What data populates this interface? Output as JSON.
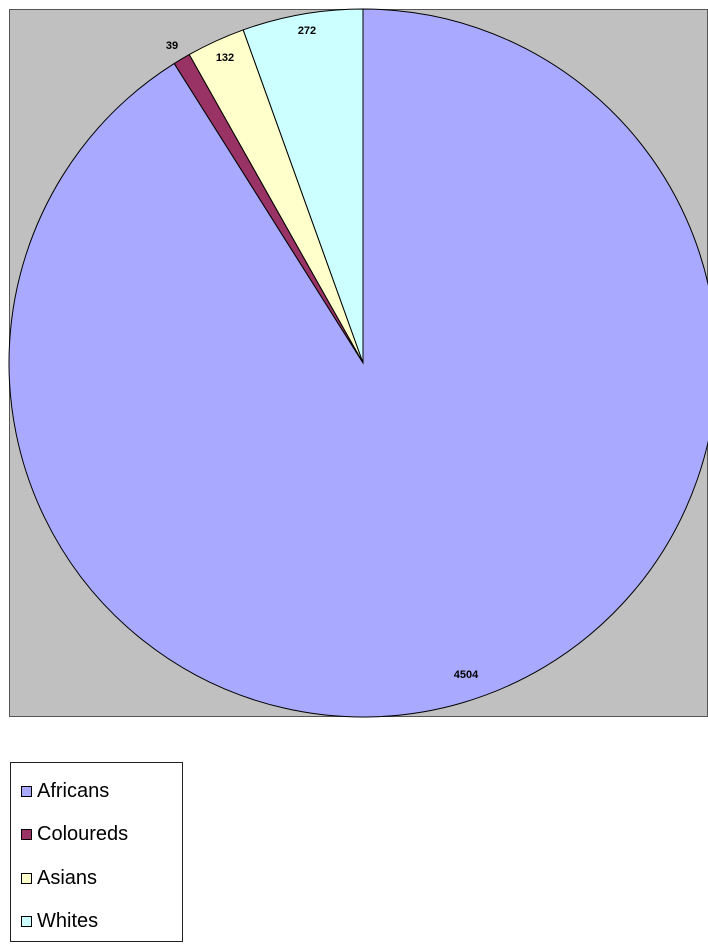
{
  "chart_data": {
    "type": "pie",
    "title": "",
    "categories": [
      "Africans",
      "Coloureds",
      "Asians",
      "Whites"
    ],
    "values": [
      4504,
      39,
      132,
      272
    ],
    "data_labels": [
      "4504",
      "39",
      "132",
      "272"
    ],
    "colors": [
      "#a9aaff",
      "#993366",
      "#ffffcc",
      "#ccffff"
    ],
    "start_angle_deg": 0,
    "direction": "counterclockwise-from-top (Whites, Asians, Coloureds, Africans)",
    "background": "#c0c0c0",
    "legend": {
      "placement": "bottom-left",
      "entries": [
        "Africans",
        "Coloureds",
        "Asians",
        "Whites"
      ]
    }
  }
}
